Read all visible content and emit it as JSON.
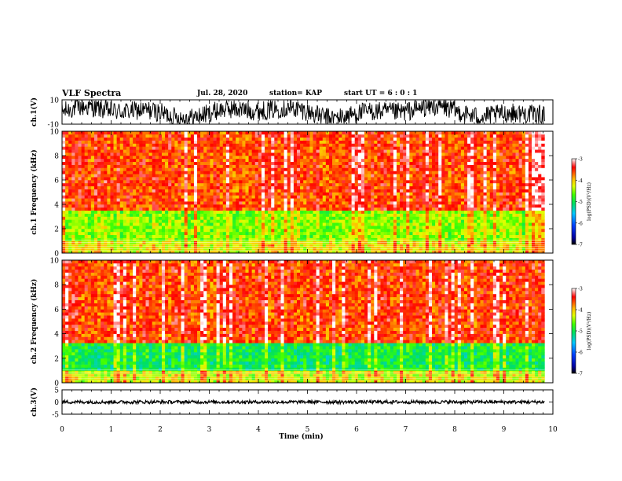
{
  "header": {
    "title": "VLF Spectra",
    "date": "Jul. 28, 2020",
    "station": "station= KAP",
    "start_ut": "start UT = 6 : 0 : 1"
  },
  "chart_data": [
    {
      "type": "line",
      "panel": "ch1-waveform",
      "ylabel": "ch.1(V)",
      "ylim": [
        -10,
        10
      ],
      "yticks": [
        "10",
        "-10"
      ],
      "xlim": [
        0,
        10
      ],
      "data_xlim": [
        0,
        9.83
      ],
      "description_level": "noisy waveform spanning roughly -10 to +10 V"
    },
    {
      "type": "heatmap",
      "panel": "ch1-spectrogram",
      "ylabel": "ch.1  Frequency (kHz)",
      "ylim": [
        0,
        10
      ],
      "yticks": [
        "0",
        "2",
        "4",
        "6",
        "8",
        "10"
      ],
      "xlim": [
        0,
        10
      ],
      "data_xlim": [
        0,
        9.83
      ],
      "colorbar": {
        "label": "log(PSD)(V²/Hz)",
        "ticks": [
          "-3",
          "-4",
          "-5",
          "-6",
          "-7"
        ],
        "range": [
          -7,
          -3
        ]
      },
      "bands": [
        {
          "from_khz": 0,
          "to_khz": 1,
          "level": -4.2
        },
        {
          "from_khz": 1,
          "to_khz": 3.6,
          "level": -4.5
        },
        {
          "from_khz": 3.6,
          "to_khz": 10,
          "level": -3.6
        }
      ]
    },
    {
      "type": "heatmap",
      "panel": "ch2-spectrogram",
      "ylabel": "ch.2  Frequency (kHz)",
      "ylim": [
        0,
        10
      ],
      "yticks": [
        "0",
        "2",
        "4",
        "6",
        "8",
        "10"
      ],
      "xlim": [
        0,
        10
      ],
      "data_xlim": [
        0,
        9.83
      ],
      "colorbar": {
        "label": "log(PSD)(V²/Hz)",
        "ticks": [
          "-3",
          "-4",
          "-5",
          "-6",
          "-7"
        ],
        "range": [
          -7,
          -3
        ]
      },
      "bands": [
        {
          "from_khz": 0,
          "to_khz": 1,
          "level": -4.3
        },
        {
          "from_khz": 1,
          "to_khz": 3.2,
          "level": -5.0
        },
        {
          "from_khz": 3.2,
          "to_khz": 10,
          "level": -3.6
        }
      ]
    },
    {
      "type": "line",
      "panel": "ch3-waveform",
      "ylabel": "ch.3(V)",
      "ylim": [
        -5,
        5
      ],
      "yticks": [
        "5",
        "0",
        "-5"
      ],
      "xlim": [
        0,
        10
      ],
      "data_xlim": [
        0,
        9.83
      ],
      "level": 0
    }
  ],
  "xaxis": {
    "label": "Time (min)",
    "ticks": [
      "0",
      "1",
      "2",
      "3",
      "4",
      "5",
      "6",
      "7",
      "8",
      "9",
      "10"
    ]
  },
  "colors": {
    "ink": "#000000",
    "background": "#ffffff"
  }
}
